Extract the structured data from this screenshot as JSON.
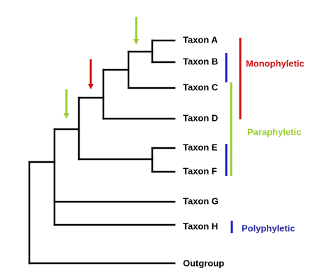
{
  "taxa": [
    "Taxon A",
    "Taxon B",
    "Taxon C",
    "Taxon D",
    "Taxon E",
    "Taxon F",
    "Taxon G",
    "Taxon H",
    "Outgroup"
  ],
  "groups": [
    "Monophyletic",
    "Paraphyletic",
    "Polyphyletic"
  ]
}
